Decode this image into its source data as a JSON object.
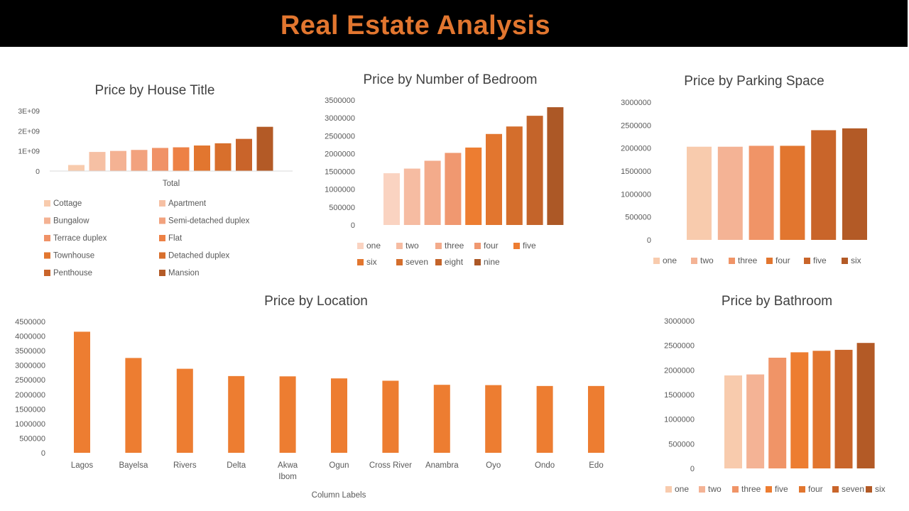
{
  "banner": {
    "title": "Real Estate Analysis"
  },
  "colors": {
    "banner_bg": "#000000",
    "banner_text": "#e2762f",
    "location_bar": "#ed7d31",
    "axis_line": "#d9d9d9"
  },
  "chart_data": [
    {
      "type": "bar",
      "title": "Price by House Title",
      "categories": [
        "Total"
      ],
      "yticks": [
        "0",
        "1E+09",
        "2E+09",
        "3E+09"
      ],
      "ylim": [
        0,
        3000000000
      ],
      "grid": false,
      "legend_position": "bottom",
      "series": [
        {
          "name": "Cottage",
          "values": [
            300000000
          ],
          "color": "#f8cbad"
        },
        {
          "name": "Apartment",
          "values": [
            950000000
          ],
          "color": "#f6c0a4"
        },
        {
          "name": "Bungalow",
          "values": [
            1000000000
          ],
          "color": "#f4b293"
        },
        {
          "name": "Semi-detached duplex",
          "values": [
            1050000000
          ],
          "color": "#f2a27e"
        },
        {
          "name": "Terrace duplex",
          "values": [
            1150000000
          ],
          "color": "#f09267"
        },
        {
          "name": "Flat",
          "values": [
            1180000000
          ],
          "color": "#ed8145"
        },
        {
          "name": "Townhouse",
          "values": [
            1270000000
          ],
          "color": "#e2762f"
        },
        {
          "name": "Detached duplex",
          "values": [
            1380000000
          ],
          "color": "#d86f2c"
        },
        {
          "name": "Penthouse",
          "values": [
            1600000000
          ],
          "color": "#c9642a"
        },
        {
          "name": "Mansion",
          "values": [
            2200000000
          ],
          "color": "#b35a26"
        }
      ]
    },
    {
      "type": "bar",
      "title": "Price by Number of Bedroom",
      "yticks": [
        "0",
        "500000",
        "1000000",
        "1500000",
        "2000000",
        "2500000",
        "3000000",
        "3500000"
      ],
      "ylim": [
        0,
        3500000
      ],
      "grid": false,
      "legend_position": "bottom",
      "series": [
        {
          "name": "one",
          "values": [
            1450000
          ],
          "color": "#fad3c1"
        },
        {
          "name": "two",
          "values": [
            1580000
          ],
          "color": "#f6bca2"
        },
        {
          "name": "three",
          "values": [
            1800000
          ],
          "color": "#f3ab8b"
        },
        {
          "name": "four",
          "values": [
            2020000
          ],
          "color": "#f09870"
        },
        {
          "name": "five",
          "values": [
            2170000
          ],
          "color": "#ed7d31"
        },
        {
          "name": "six",
          "values": [
            2550000
          ],
          "color": "#e2762f"
        },
        {
          "name": "seven",
          "values": [
            2760000
          ],
          "color": "#d46e2c"
        },
        {
          "name": "eight",
          "values": [
            3060000
          ],
          "color": "#c4642a"
        },
        {
          "name": "nine",
          "values": [
            3300000
          ],
          "color": "#ac5826"
        }
      ]
    },
    {
      "type": "bar",
      "title": "Price by Parking Space",
      "yticks": [
        "0",
        "500000",
        "1000000",
        "1500000",
        "2000000",
        "2500000",
        "3000000"
      ],
      "ylim": [
        0,
        3000000
      ],
      "grid": false,
      "legend_position": "bottom",
      "series": [
        {
          "name": "one",
          "values": [
            2030000
          ],
          "color": "#f8cbad"
        },
        {
          "name": "two",
          "values": [
            2030000
          ],
          "color": "#f4b395"
        },
        {
          "name": "three",
          "values": [
            2050000
          ],
          "color": "#f09467"
        },
        {
          "name": "four",
          "values": [
            2050000
          ],
          "color": "#e2762f"
        },
        {
          "name": "five",
          "values": [
            2390000
          ],
          "color": "#c9652a"
        },
        {
          "name": "six",
          "values": [
            2430000
          ],
          "color": "#b35a26"
        }
      ]
    },
    {
      "type": "bar",
      "title": "Price by Location",
      "xlabel": "Column Labels",
      "categories": [
        "Lagos",
        "Bayelsa",
        "Rivers",
        "Delta",
        "Akwa Ibom",
        "Ogun",
        "Cross River",
        "Anambra",
        "Oyo",
        "Ondo",
        "Edo"
      ],
      "values": [
        4150000,
        3250000,
        2880000,
        2630000,
        2620000,
        2550000,
        2470000,
        2330000,
        2320000,
        2290000,
        2290000
      ],
      "yticks": [
        "0",
        "500000",
        "1000000",
        "1500000",
        "2000000",
        "2500000",
        "3000000",
        "3500000",
        "4000000",
        "4500000"
      ],
      "ylim": [
        0,
        4500000
      ],
      "grid": false
    },
    {
      "type": "bar",
      "title": "Price by Bathroom",
      "yticks": [
        "0",
        "500000",
        "1000000",
        "1500000",
        "2000000",
        "2500000",
        "3000000"
      ],
      "ylim": [
        0,
        3000000
      ],
      "grid": false,
      "legend_position": "bottom",
      "series": [
        {
          "name": "one",
          "values": [
            1890000
          ],
          "color": "#f8cbad"
        },
        {
          "name": "two",
          "values": [
            1910000
          ],
          "color": "#f4b395"
        },
        {
          "name": "three",
          "values": [
            2250000
          ],
          "color": "#f09467"
        },
        {
          "name": "five",
          "values": [
            2360000
          ],
          "color": "#ed7d31"
        },
        {
          "name": "four",
          "values": [
            2390000
          ],
          "color": "#e2762f"
        },
        {
          "name": "seven",
          "values": [
            2410000
          ],
          "color": "#c9652a"
        },
        {
          "name": "six",
          "values": [
            2550000
          ],
          "color": "#b35a26"
        }
      ]
    }
  ]
}
